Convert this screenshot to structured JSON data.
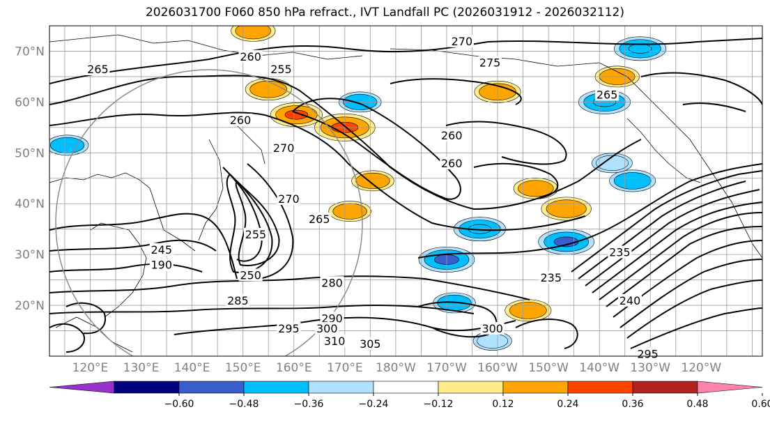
{
  "title": "2026031700 F060 850 hPa refract., IVT Landfall PC (2026031912 - 2026032112)",
  "latitude_labels": [
    "70°N",
    "60°N",
    "50°N",
    "40°N",
    "30°N",
    "20°N"
  ],
  "longitude_labels": [
    "120°E",
    "130°E",
    "140°E",
    "150°E",
    "160°E",
    "170°E",
    "180°W",
    "170°W",
    "160°W",
    "150°W",
    "140°W",
    "130°W",
    "120°W"
  ],
  "contour_labels": [
    {
      "text": "265",
      "lon": 121.5,
      "lat": 66.5
    },
    {
      "text": "260",
      "lon": 151.5,
      "lat": 69.0
    },
    {
      "text": "255",
      "lon": 157.5,
      "lat": 66.5
    },
    {
      "text": "270",
      "lon": 193.0,
      "lat": 72.0
    },
    {
      "text": "275",
      "lon": 198.5,
      "lat": 67.8
    },
    {
      "text": "265",
      "lon": 221.5,
      "lat": 61.5
    },
    {
      "text": "260",
      "lon": 149.5,
      "lat": 56.5
    },
    {
      "text": "260",
      "lon": 191.0,
      "lat": 53.5
    },
    {
      "text": "270",
      "lon": 158.0,
      "lat": 51.0
    },
    {
      "text": "260",
      "lon": 191.0,
      "lat": 48.0
    },
    {
      "text": "270",
      "lon": 159.0,
      "lat": 41.0
    },
    {
      "text": "265",
      "lon": 165.0,
      "lat": 37.0
    },
    {
      "text": "255",
      "lon": 152.5,
      "lat": 34.0
    },
    {
      "text": "245",
      "lon": 134.0,
      "lat": 31.0
    },
    {
      "text": "235",
      "lon": 224.0,
      "lat": 30.5
    },
    {
      "text": "250",
      "lon": 151.5,
      "lat": 26.0
    },
    {
      "text": "235",
      "lon": 210.5,
      "lat": 25.5
    },
    {
      "text": "280",
      "lon": 167.5,
      "lat": 24.5
    },
    {
      "text": "285",
      "lon": 149.0,
      "lat": 21.0
    },
    {
      "text": "240",
      "lon": 226.0,
      "lat": 21.0
    },
    {
      "text": "290",
      "lon": 167.5,
      "lat": 17.5
    },
    {
      "text": "295",
      "lon": 159.0,
      "lat": 15.5
    },
    {
      "text": "300",
      "lon": 166.5,
      "lat": 15.5
    },
    {
      "text": "310",
      "lon": 168.0,
      "lat": 13.0
    },
    {
      "text": "305",
      "lon": 175.0,
      "lat": 12.5
    },
    {
      "text": "300",
      "lon": 199.0,
      "lat": 15.5
    },
    {
      "text": "295",
      "lon": 229.5,
      "lat": 10.5
    },
    {
      "text": "190",
      "lon": 134.0,
      "lat": 28.0
    }
  ],
  "shading": {
    "positive": [
      {
        "value": 0.45,
        "lon": 170.0,
        "lat": 55.0
      },
      {
        "value": 0.36,
        "lon": 160.5,
        "lat": 57.5
      },
      {
        "value": 0.3,
        "lon": 155.0,
        "lat": 62.5
      },
      {
        "value": 0.3,
        "lon": 200.0,
        "lat": 62.0
      },
      {
        "value": 0.28,
        "lon": 207.5,
        "lat": 43.0
      },
      {
        "value": 0.34,
        "lon": 213.5,
        "lat": 39.0
      },
      {
        "value": 0.28,
        "lon": 223.5,
        "lat": 65.0
      },
      {
        "value": 0.3,
        "lon": 206.0,
        "lat": 19.0
      },
      {
        "value": 0.26,
        "lon": 171.0,
        "lat": 38.5
      },
      {
        "value": 0.28,
        "lon": 152.0,
        "lat": 74.0
      },
      {
        "value": 0.26,
        "lon": 175.5,
        "lat": 44.5
      }
    ],
    "negative": [
      {
        "value": -0.4,
        "lon": 190.0,
        "lat": 29.0
      },
      {
        "value": -0.36,
        "lon": 196.5,
        "lat": 35.0
      },
      {
        "value": -0.4,
        "lon": 213.5,
        "lat": 32.5
      },
      {
        "value": -0.36,
        "lon": 221.0,
        "lat": 60.0
      },
      {
        "value": -0.36,
        "lon": 228.0,
        "lat": 70.5
      },
      {
        "value": -0.3,
        "lon": 226.5,
        "lat": 44.5
      },
      {
        "value": -0.26,
        "lon": 191.5,
        "lat": 20.5
      },
      {
        "value": -0.26,
        "lon": 173.0,
        "lat": 60.0
      },
      {
        "value": -0.24,
        "lon": 222.5,
        "lat": 48.0
      },
      {
        "value": -0.22,
        "lon": 199.0,
        "lat": 13.0
      },
      {
        "value": -0.26,
        "lon": 115.5,
        "lat": 51.5
      }
    ]
  },
  "colorbar": {
    "ticks": [
      "−0.60",
      "−0.48",
      "−0.36",
      "−0.24",
      "−0.12",
      "0.12",
      "0.24",
      "0.36",
      "0.48",
      "0.60"
    ],
    "colors": [
      "#9932cc",
      "#000080",
      "#3a5fcd",
      "#00bfff",
      "#b0e2ff",
      "#ffffff",
      "#ffec8b",
      "#ffa500",
      "#ff4500",
      "#b22222",
      "#ff82ab"
    ],
    "bounds": [
      -0.72,
      -0.6,
      -0.48,
      -0.36,
      -0.24,
      -0.12,
      0.12,
      0.24,
      0.36,
      0.48,
      0.6,
      0.72
    ]
  }
}
